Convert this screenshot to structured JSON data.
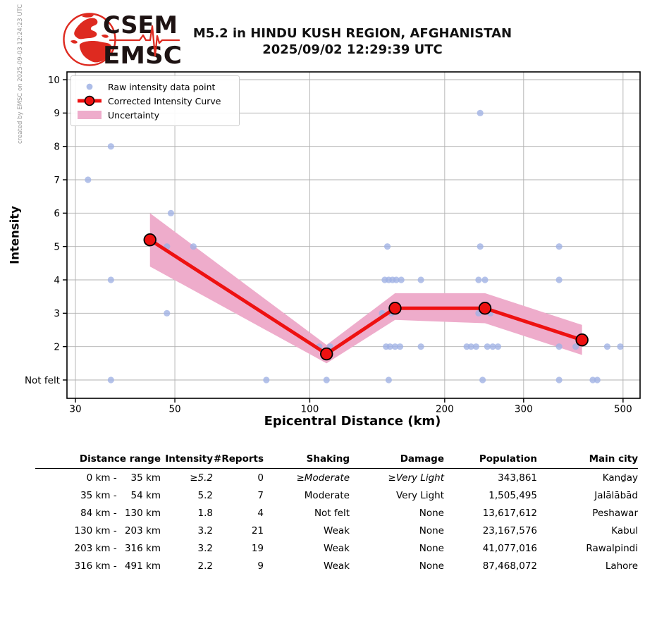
{
  "header": {
    "logo": {
      "top_text": "CSEM",
      "bottom_text": "EMSC"
    },
    "title_line1": "M5.2 in HINDU KUSH REGION, AFGHANISTAN",
    "title_line2": "2025/09/02 12:29:39 UTC",
    "created_by": "created by EMSC on 2025-09-03 12:24:23 UTC"
  },
  "chart_data": {
    "type": "scatter",
    "title": "",
    "xlabel": "Epicentral Distance (km)",
    "ylabel": "Intensity",
    "x_scale": "log",
    "x_range": [
      28.7,
      545
    ],
    "y_range": [
      0.45,
      10.25
    ],
    "grid": true,
    "legend_position": "upper left",
    "x_ticks": [
      30,
      50,
      100,
      200,
      300,
      500
    ],
    "y_ticks": [
      {
        "value": 1,
        "label": "Not felt"
      },
      {
        "value": 2,
        "label": "2"
      },
      {
        "value": 3,
        "label": "3"
      },
      {
        "value": 4,
        "label": "4"
      },
      {
        "value": 5,
        "label": "5"
      },
      {
        "value": 6,
        "label": "6"
      },
      {
        "value": 7,
        "label": "7"
      },
      {
        "value": 8,
        "label": "8"
      },
      {
        "value": 9,
        "label": "9"
      },
      {
        "value": 10,
        "label": "10"
      }
    ],
    "legend": [
      {
        "label": "Raw intensity data point"
      },
      {
        "label": "Corrected Intensity Curve"
      },
      {
        "label": "Uncertainty"
      }
    ],
    "raw_points": [
      [
        32,
        7
      ],
      [
        36,
        8
      ],
      [
        36,
        4
      ],
      [
        36,
        1
      ],
      [
        48,
        5
      ],
      [
        55,
        5
      ],
      [
        49,
        6
      ],
      [
        48,
        3
      ],
      [
        80,
        1
      ],
      [
        105,
        2
      ],
      [
        111,
        2
      ],
      [
        109,
        1
      ],
      [
        145,
        3
      ],
      [
        152,
        3
      ],
      [
        147,
        4
      ],
      [
        150,
        4
      ],
      [
        153,
        4
      ],
      [
        156,
        4
      ],
      [
        160,
        4
      ],
      [
        149,
        5
      ],
      [
        148,
        2
      ],
      [
        151,
        2
      ],
      [
        155,
        2
      ],
      [
        159,
        2
      ],
      [
        150,
        1
      ],
      [
        177,
        4
      ],
      [
        177,
        2
      ],
      [
        240,
        9
      ],
      [
        240,
        5
      ],
      [
        238,
        4
      ],
      [
        246,
        4
      ],
      [
        238,
        3
      ],
      [
        253,
        3
      ],
      [
        224,
        2
      ],
      [
        229,
        2
      ],
      [
        235,
        2
      ],
      [
        249,
        2
      ],
      [
        256,
        2
      ],
      [
        263,
        2
      ],
      [
        243,
        1
      ],
      [
        360,
        5
      ],
      [
        360,
        4
      ],
      [
        360,
        2
      ],
      [
        360,
        1
      ],
      [
        392,
        2
      ],
      [
        428,
        1
      ],
      [
        438,
        1
      ],
      [
        461,
        2
      ],
      [
        493,
        2
      ]
    ],
    "corrected_curve": [
      [
        44,
        5.2
      ],
      [
        109,
        1.78
      ],
      [
        155,
        3.15
      ],
      [
        246,
        3.15
      ],
      [
        405,
        2.2
      ]
    ],
    "uncertainty_band": {
      "x": [
        44,
        109,
        155,
        246,
        405
      ],
      "upper": [
        6.0,
        2.05,
        3.6,
        3.6,
        2.65
      ],
      "lower": [
        4.4,
        1.5,
        2.8,
        2.7,
        1.75
      ]
    },
    "colors": {
      "raw_point": "#9fb1e4",
      "curve": "#ee1111",
      "uncertainty": "#eeaccb",
      "grid": "#b0b0b0",
      "logo_red": "#de2a20",
      "logo_text": "#1e1313"
    }
  },
  "table": {
    "headers": [
      "Distance range",
      "Intensity",
      "#Reports",
      "Shaking",
      "Damage",
      "Population",
      "Main city"
    ],
    "rows": [
      {
        "from": "0 km",
        "to": "35 km",
        "intensity": "≥5.2",
        "reports": "0",
        "shaking": "≥Moderate",
        "damage": "≥Very Light",
        "population": "343,861",
        "city": "Kanḏay",
        "italic": true
      },
      {
        "from": "35 km",
        "to": "54 km",
        "intensity": "5.2",
        "reports": "7",
        "shaking": "Moderate",
        "damage": "Very Light",
        "population": "1,505,495",
        "city": "Jalālābād",
        "italic": false
      },
      {
        "from": "84 km",
        "to": "130 km",
        "intensity": "1.8",
        "reports": "4",
        "shaking": "Not felt",
        "damage": "None",
        "population": "13,617,612",
        "city": "Peshawar",
        "italic": false
      },
      {
        "from": "130 km",
        "to": "203 km",
        "intensity": "3.2",
        "reports": "21",
        "shaking": "Weak",
        "damage": "None",
        "population": "23,167,576",
        "city": "Kabul",
        "italic": false
      },
      {
        "from": "203 km",
        "to": "316 km",
        "intensity": "3.2",
        "reports": "19",
        "shaking": "Weak",
        "damage": "None",
        "population": "41,077,016",
        "city": "Rawalpindi",
        "italic": false
      },
      {
        "from": "316 km",
        "to": "491 km",
        "intensity": "2.2",
        "reports": "9",
        "shaking": "Weak",
        "damage": "None",
        "population": "87,468,072",
        "city": "Lahore",
        "italic": false
      }
    ]
  }
}
